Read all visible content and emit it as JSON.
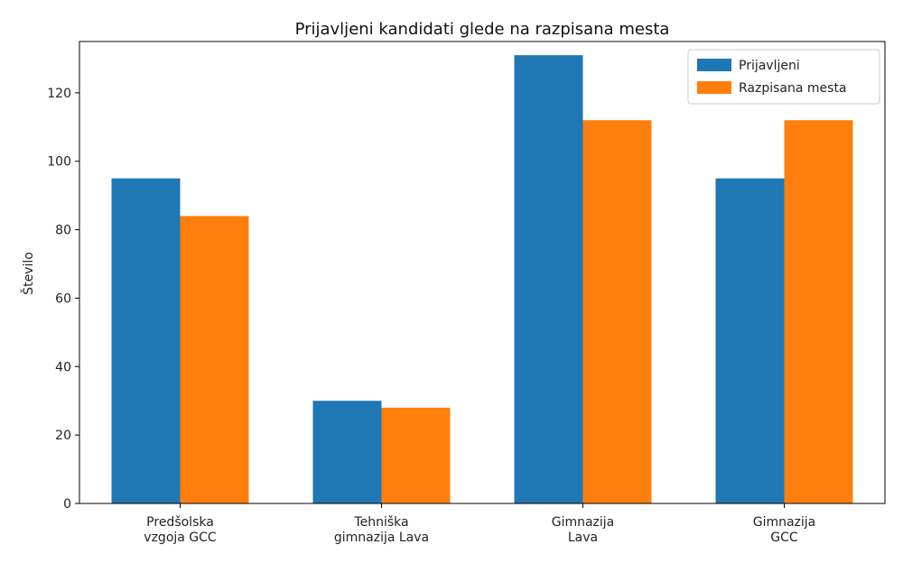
{
  "chart_data": {
    "type": "bar",
    "title": "Prijavljeni kandidati glede na razpisana mesta",
    "xlabel": "",
    "ylabel": "Število",
    "ylim": [
      0,
      135
    ],
    "yticks": [
      0,
      20,
      40,
      60,
      80,
      100,
      120
    ],
    "categories": [
      [
        "Predšolska",
        "vzgoja GCC"
      ],
      [
        "Tehniška",
        "gimnazija Lava"
      ],
      [
        "Gimnazija",
        "Lava"
      ],
      [
        "Gimnazija",
        "GCC"
      ]
    ],
    "series": [
      {
        "name": "Prijavljeni",
        "color": "#1f77b4",
        "values": [
          95,
          30,
          131,
          95
        ]
      },
      {
        "name": "Razpisana mesta",
        "color": "#ff7f0e",
        "values": [
          84,
          28,
          112,
          112
        ]
      }
    ],
    "legend": {
      "placement": "top-right"
    },
    "grid": false
  }
}
